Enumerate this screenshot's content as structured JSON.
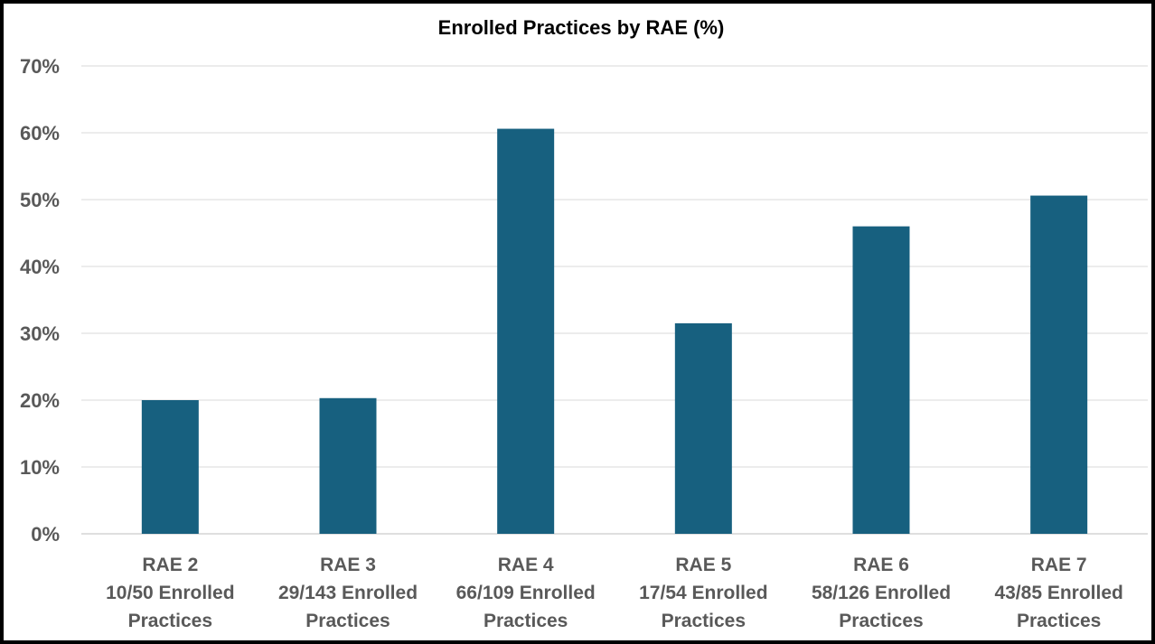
{
  "chart_data": {
    "type": "bar",
    "title": "Enrolled Practices by RAE (%)",
    "xlabel": "",
    "ylabel": "",
    "ylim": [
      0,
      70
    ],
    "yticks": [
      0,
      10,
      20,
      30,
      40,
      50,
      60,
      70
    ],
    "ytick_labels": [
      "0%",
      "10%",
      "20%",
      "30%",
      "40%",
      "50%",
      "60%",
      "70%"
    ],
    "categories": [
      [
        "RAE 2",
        "10/50 Enrolled",
        "Practices"
      ],
      [
        "RAE 3",
        "29/143 Enrolled",
        "Practices"
      ],
      [
        "RAE 4",
        "66/109 Enrolled",
        "Practices"
      ],
      [
        "RAE 5",
        "17/54 Enrolled",
        "Practices"
      ],
      [
        "RAE 6",
        "58/126 Enrolled",
        "Practices"
      ],
      [
        "RAE 7",
        "43/85 Enrolled",
        "Practices"
      ]
    ],
    "values": [
      20.0,
      20.3,
      60.6,
      31.5,
      46.0,
      50.6
    ],
    "bar_color": "#17607F",
    "grid": true,
    "legend": "none"
  }
}
